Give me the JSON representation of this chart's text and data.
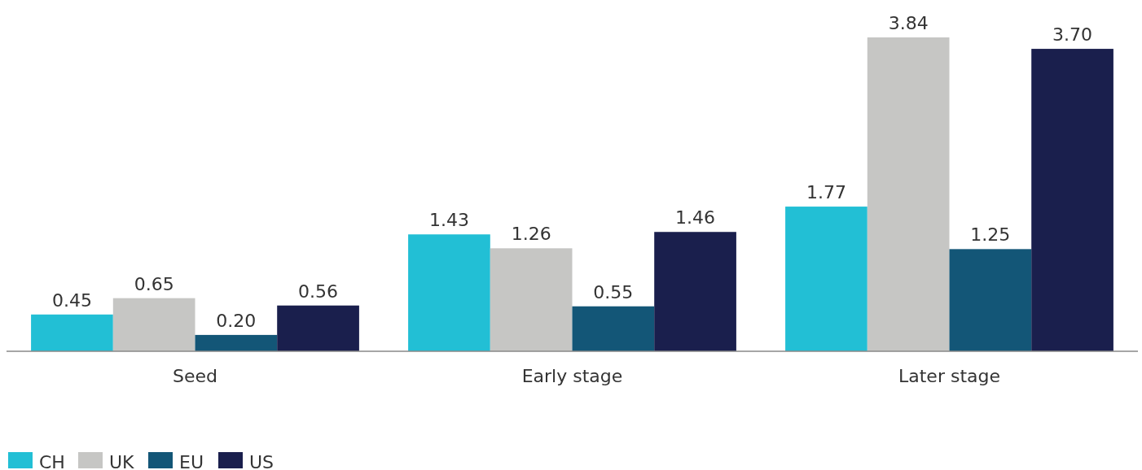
{
  "chart_data": {
    "type": "bar",
    "categories": [
      "Seed",
      "Early stage",
      "Later stage"
    ],
    "series": [
      {
        "name": "CH",
        "color": "#22bfd5",
        "values": [
          0.45,
          1.43,
          1.77
        ],
        "value_labels": [
          "0.45",
          "1.43",
          "1.77"
        ]
      },
      {
        "name": "UK",
        "color": "#c6c6c4",
        "values": [
          0.65,
          1.26,
          3.84
        ],
        "value_labels": [
          "0.65",
          "1.26",
          "3.84"
        ]
      },
      {
        "name": "EU",
        "color": "#135677",
        "values": [
          0.2,
          0.55,
          1.25
        ],
        "value_labels": [
          "0.20",
          "0.55",
          "1.25"
        ]
      },
      {
        "name": "US",
        "color": "#1a1f4d",
        "values": [
          0.56,
          1.46,
          3.7
        ],
        "value_labels": [
          "0.56",
          "1.46",
          "3.70"
        ]
      }
    ],
    "legend": "bottom left"
  }
}
